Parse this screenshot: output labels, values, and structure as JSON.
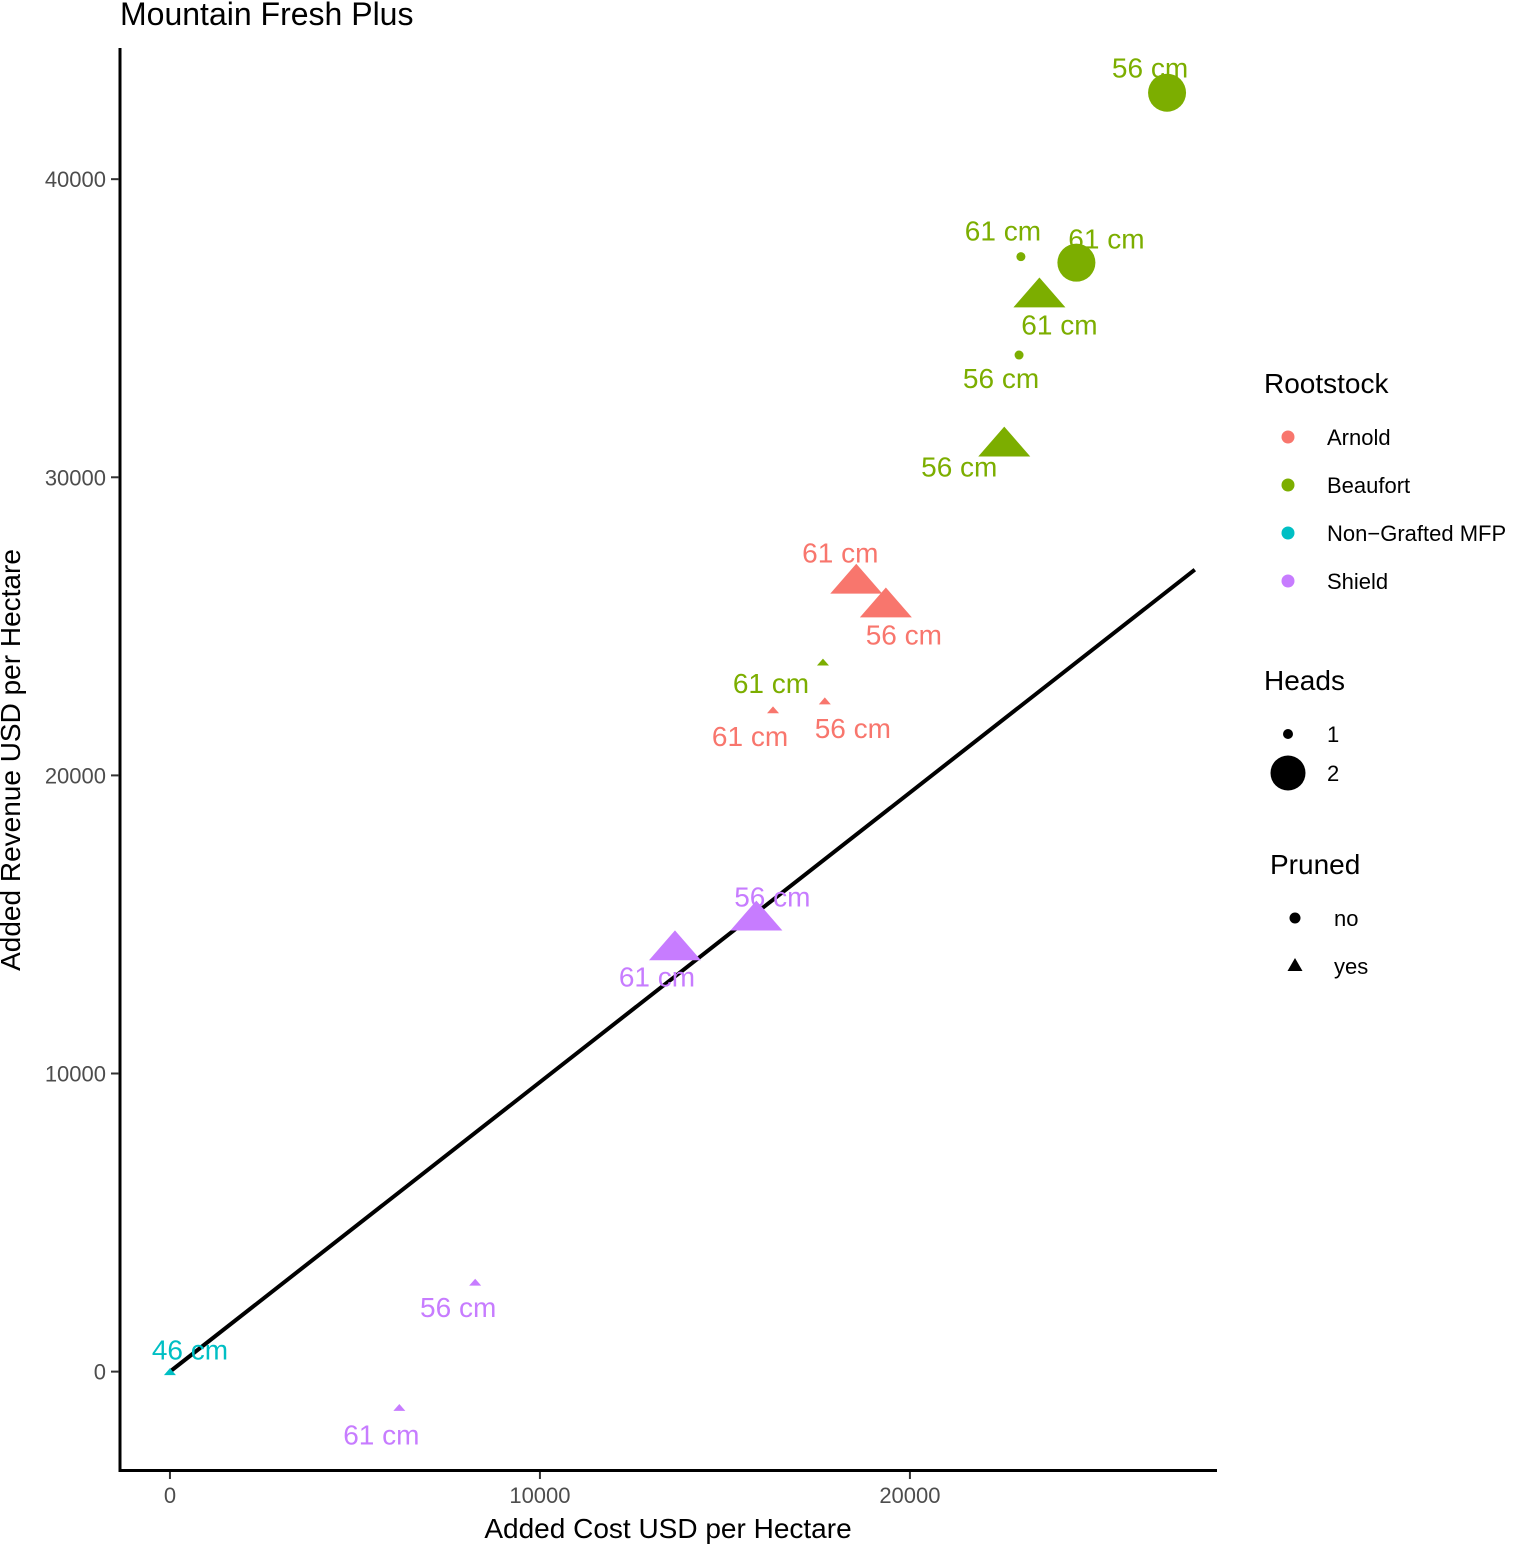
{
  "chart_data": {
    "type": "scatter",
    "title": "Mountain Fresh Plus",
    "xlabel": "Added Cost USD per Hectare",
    "ylabel": "Added Revenue USD per Hectare",
    "xlim": [
      -1350,
      28300
    ],
    "ylim": [
      -3300,
      44400
    ],
    "xticks": [
      0,
      10000,
      20000
    ],
    "xtick_labels": [
      "0",
      "10000",
      "20000"
    ],
    "yticks": [
      0,
      10000,
      20000,
      30000,
      40000
    ],
    "ytick_labels": [
      "0",
      "10000",
      "20000",
      "30000",
      "40000"
    ],
    "grid": false,
    "reference_line": {
      "x": [
        0,
        27700
      ],
      "y": [
        0,
        26900
      ]
    },
    "colors": {
      "Arnold": "#F8766D",
      "Beaufort": "#7CAE00",
      "Non-Grafted MFP": "#00BFC4",
      "Shield": "#C77CFF"
    },
    "points": [
      {
        "rootstock": "Beaufort",
        "heads": 2,
        "pruned": "no",
        "x": 26950,
        "y": 42900,
        "label": "56 cm"
      },
      {
        "rootstock": "Beaufort",
        "heads": 1,
        "pruned": "no",
        "x": 23000,
        "y": 37400,
        "label": "61 cm"
      },
      {
        "rootstock": "Beaufort",
        "heads": 2,
        "pruned": "no",
        "x": 24500,
        "y": 37200,
        "label": "61 cm"
      },
      {
        "rootstock": "Beaufort",
        "heads": 2,
        "pruned": "yes",
        "x": 23500,
        "y": 36200,
        "label": "61 cm"
      },
      {
        "rootstock": "Beaufort",
        "heads": 1,
        "pruned": "no",
        "x": 22950,
        "y": 34100,
        "label": "56 cm"
      },
      {
        "rootstock": "Beaufort",
        "heads": 2,
        "pruned": "yes",
        "x": 22550,
        "y": 31200,
        "label": "56 cm"
      },
      {
        "rootstock": "Arnold",
        "heads": 2,
        "pruned": "yes",
        "x": 18550,
        "y": 26600,
        "label": "61 cm"
      },
      {
        "rootstock": "Arnold",
        "heads": 2,
        "pruned": "yes",
        "x": 19350,
        "y": 25800,
        "label": "56 cm"
      },
      {
        "rootstock": "Beaufort",
        "heads": 1,
        "pruned": "yes",
        "x": 17650,
        "y": 23800,
        "label": "61 cm"
      },
      {
        "rootstock": "Arnold",
        "heads": 1,
        "pruned": "yes",
        "x": 17700,
        "y": 22500,
        "label": "56 cm"
      },
      {
        "rootstock": "Arnold",
        "heads": 1,
        "pruned": "yes",
        "x": 16300,
        "y": 22200,
        "label": "61 cm"
      },
      {
        "rootstock": "Shield",
        "heads": 2,
        "pruned": "yes",
        "x": 15850,
        "y": 15300,
        "label": "56 cm"
      },
      {
        "rootstock": "Shield",
        "heads": 2,
        "pruned": "yes",
        "x": 13650,
        "y": 14300,
        "label": "61 cm"
      },
      {
        "rootstock": "Shield",
        "heads": 1,
        "pruned": "yes",
        "x": 8250,
        "y": 3000,
        "label": "56 cm"
      },
      {
        "rootstock": "Shield",
        "heads": 1,
        "pruned": "yes",
        "x": 6200,
        "y": -1200,
        "label": "61 cm"
      },
      {
        "rootstock": "Non-Grafted MFP",
        "heads": 1,
        "pruned": "yes",
        "x": 0,
        "y": 0,
        "label": "46 cm"
      }
    ],
    "legend": {
      "position": "right",
      "rootstock": {
        "title": "Rootstock",
        "items": [
          "Arnold",
          "Beaufort",
          "Non−Grafted MFP",
          "Shield"
        ]
      },
      "heads": {
        "title": "Heads",
        "items": [
          "1",
          "2"
        ]
      },
      "pruned": {
        "title": "Pruned",
        "items": [
          "no",
          "yes"
        ]
      }
    }
  }
}
